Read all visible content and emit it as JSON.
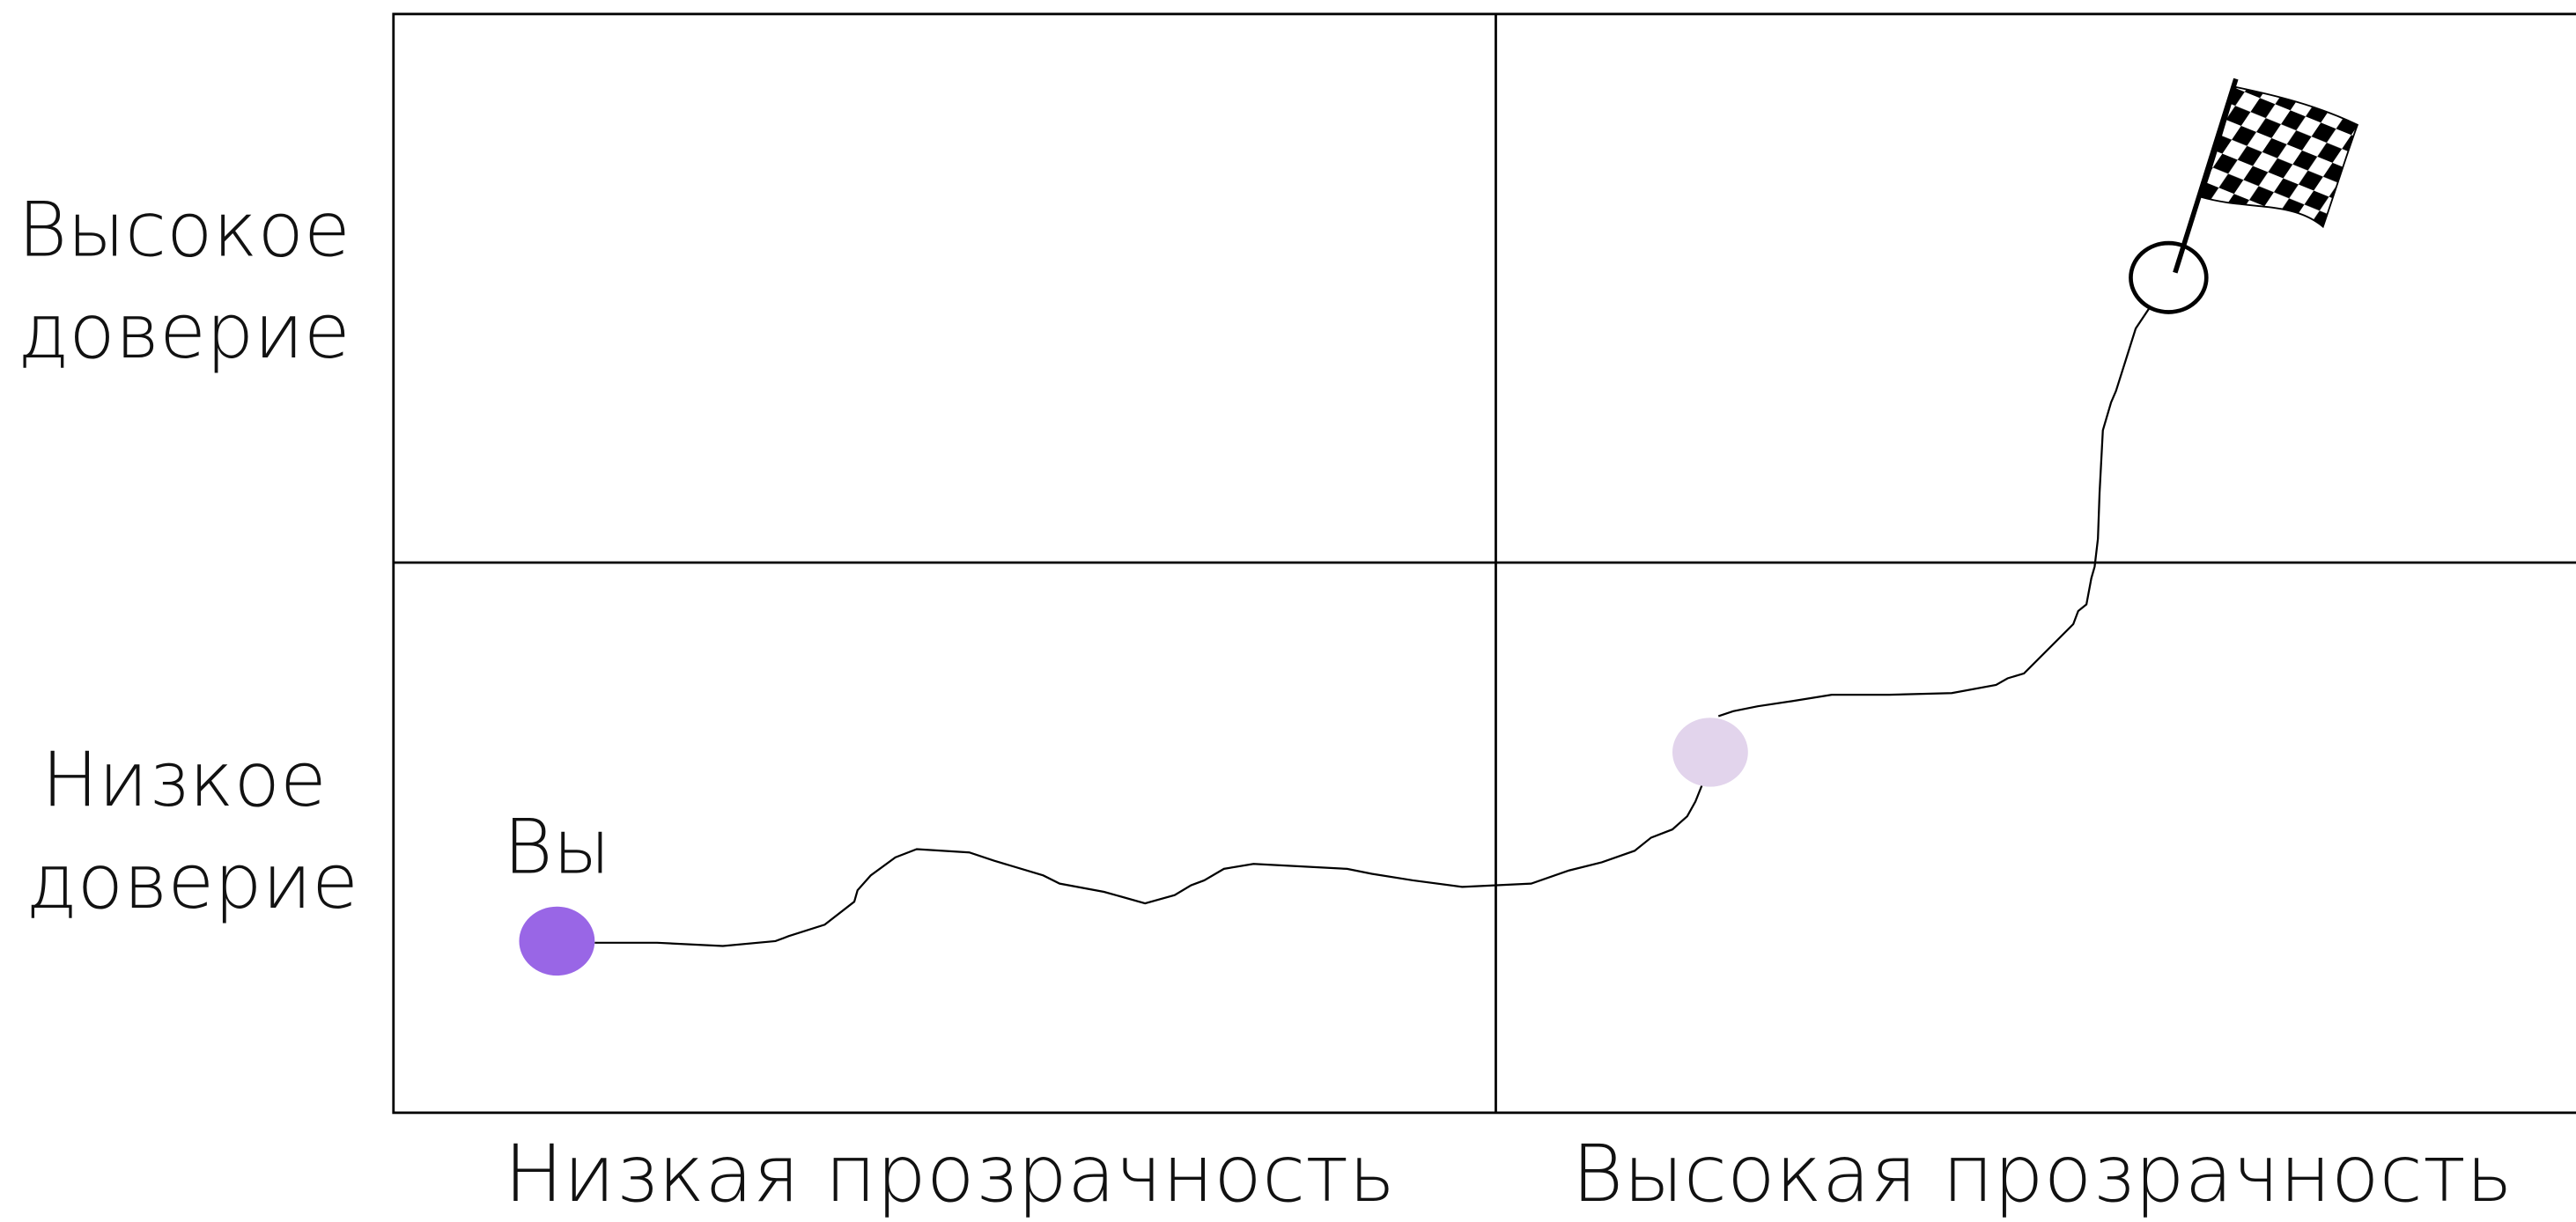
{
  "y_axis": {
    "high": [
      "Высокое",
      "доверие"
    ],
    "low": [
      "Низкое",
      "доверие"
    ]
  },
  "x_axis": {
    "low": "Низкая прозрачность",
    "high": "Высокая прозрачность"
  },
  "marker_label": "Вы"
}
